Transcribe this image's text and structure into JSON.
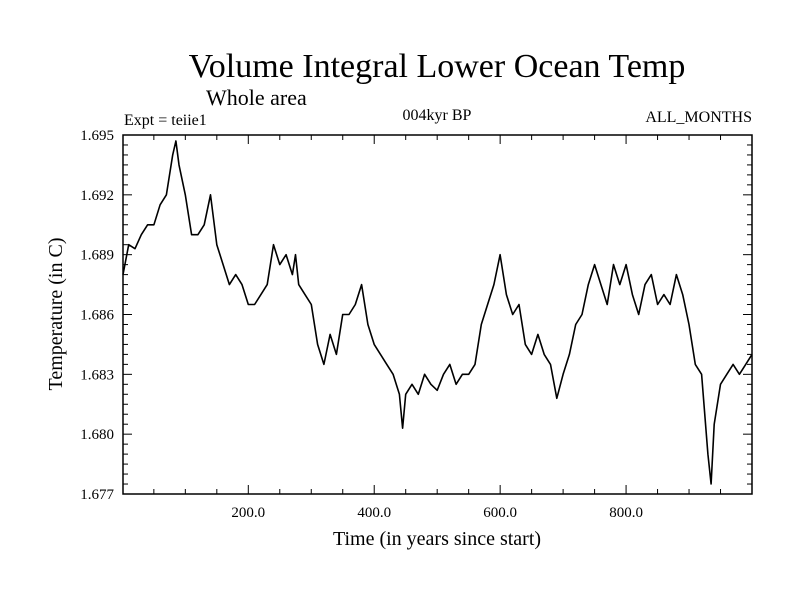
{
  "chart_data": {
    "type": "line",
    "title": "Volume Integral Lower Ocean Temp",
    "subtitle": "Whole area",
    "annotations": {
      "left": "Expt = teiie1",
      "center": "004kyr BP",
      "right": "ALL_MONTHS"
    },
    "xlabel": "Time (in years since start)",
    "ylabel": "Temperature (in C)",
    "xlim": [
      1,
      1000
    ],
    "ylim": [
      1.677,
      1.695
    ],
    "xticks": [
      200,
      400,
      600,
      800
    ],
    "xtick_labels": [
      "200.0",
      "400.0",
      "600.0",
      "800.0"
    ],
    "yticks": [
      1.677,
      1.68,
      1.683,
      1.686,
      1.689,
      1.692,
      1.695
    ],
    "ytick_labels": [
      "1.677",
      "1.680",
      "1.683",
      "1.686",
      "1.689",
      "1.692",
      "1.695"
    ],
    "grid": false,
    "legend": "none",
    "line_color": "#000000",
    "series": [
      {
        "x": [
          1,
          10,
          20,
          30,
          40,
          50,
          60,
          70,
          80,
          85,
          90,
          100,
          110,
          120,
          130,
          140,
          150,
          160,
          170,
          180,
          190,
          200,
          210,
          220,
          230,
          240,
          250,
          260,
          270,
          275,
          280,
          290,
          300,
          310,
          320,
          330,
          340,
          350,
          360,
          370,
          380,
          390,
          400,
          410,
          420,
          430,
          440,
          445,
          450,
          460,
          470,
          480,
          490,
          500,
          510,
          520,
          530,
          540,
          550,
          560,
          570,
          580,
          590,
          600,
          610,
          620,
          630,
          640,
          650,
          660,
          670,
          680,
          690,
          700,
          710,
          720,
          730,
          740,
          750,
          760,
          770,
          780,
          790,
          800,
          810,
          820,
          830,
          840,
          850,
          860,
          870,
          880,
          890,
          900,
          910,
          920,
          930,
          935,
          940,
          950,
          960,
          970,
          980,
          990,
          1000
        ],
        "values": [
          1.688,
          1.6895,
          1.6893,
          1.69,
          1.6905,
          1.6905,
          1.6915,
          1.692,
          1.694,
          1.6947,
          1.6935,
          1.692,
          1.69,
          1.69,
          1.6905,
          1.692,
          1.6895,
          1.6885,
          1.6875,
          1.688,
          1.6875,
          1.6865,
          1.6865,
          1.687,
          1.6875,
          1.6895,
          1.6885,
          1.689,
          1.688,
          1.689,
          1.6875,
          1.687,
          1.6865,
          1.6845,
          1.6835,
          1.685,
          1.684,
          1.686,
          1.686,
          1.6865,
          1.6875,
          1.6855,
          1.6845,
          1.684,
          1.6835,
          1.683,
          1.682,
          1.6803,
          1.682,
          1.6825,
          1.682,
          1.683,
          1.6825,
          1.6822,
          1.683,
          1.6835,
          1.6825,
          1.683,
          1.683,
          1.6835,
          1.6855,
          1.6865,
          1.6875,
          1.689,
          1.687,
          1.686,
          1.6865,
          1.6845,
          1.684,
          1.685,
          1.684,
          1.6835,
          1.6818,
          1.683,
          1.684,
          1.6855,
          1.686,
          1.6875,
          1.6885,
          1.6875,
          1.6865,
          1.6885,
          1.6875,
          1.6885,
          1.687,
          1.686,
          1.6875,
          1.688,
          1.6865,
          1.687,
          1.6865,
          1.688,
          1.687,
          1.6855,
          1.6835,
          1.683,
          1.679,
          1.6775,
          1.6805,
          1.6825,
          1.683,
          1.6835,
          1.683,
          1.6835,
          1.684
        ]
      }
    ]
  }
}
